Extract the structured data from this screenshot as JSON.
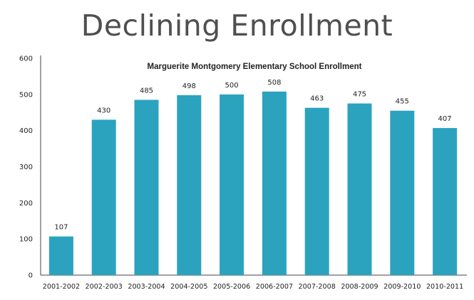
{
  "page": {
    "title": "Declining Enrollment"
  },
  "chart_data": {
    "type": "bar",
    "title": "Marguerite Montgomery Elementary School Enrollment",
    "xlabel": "",
    "ylabel": "",
    "categories": [
      "2001-2002",
      "2002-2003",
      "2003-2004",
      "2004-2005",
      "2005-2006",
      "2006-2007",
      "2007-2008",
      "2008-2009",
      "2009-2010",
      "2010-2011"
    ],
    "values": [
      107,
      430,
      485,
      498,
      500,
      508,
      463,
      475,
      455,
      407
    ],
    "ylim": [
      0,
      600
    ],
    "yticks": [
      0,
      100,
      200,
      300,
      400,
      500,
      600
    ],
    "grid": false,
    "legend": "none",
    "bar_color": "#2ba3bf",
    "axis_color": "#444444"
  }
}
